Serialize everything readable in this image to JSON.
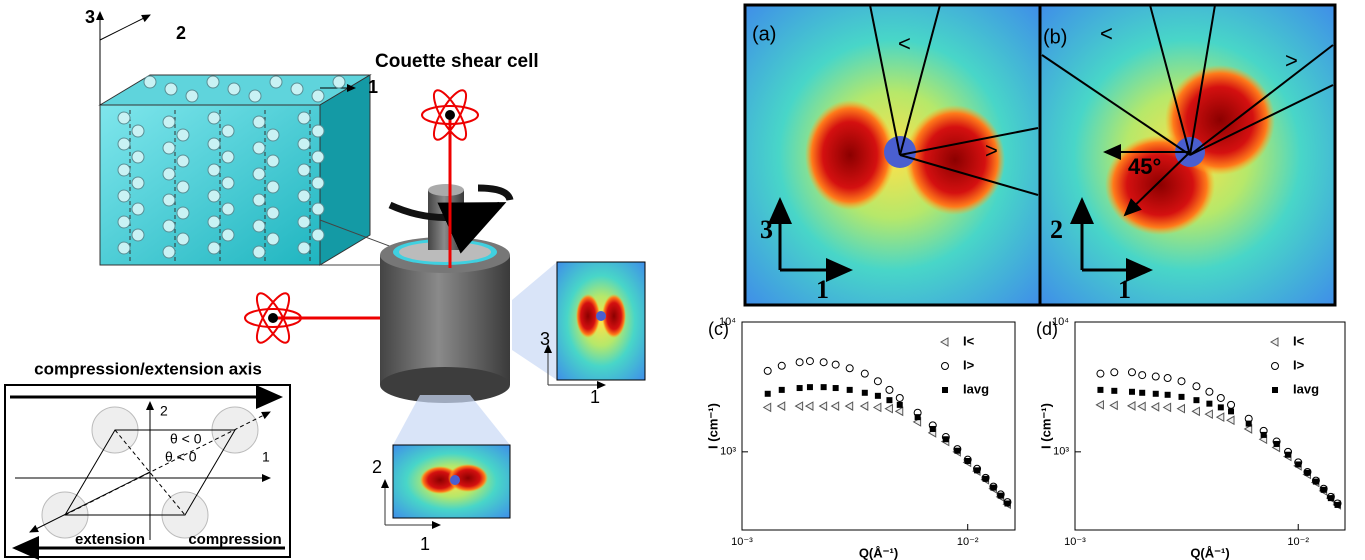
{
  "figure": {
    "cube": {
      "axis_labels": [
        "3",
        "2",
        "1"
      ]
    },
    "couette": {
      "title": "Couette shear cell"
    },
    "detector_side": {
      "axis_labels": [
        "3",
        "1"
      ]
    },
    "detector_bottom": {
      "axis_labels": [
        "2",
        "1"
      ]
    },
    "inset": {
      "title": "compression/extension axis",
      "axis_labels": [
        "2",
        "1"
      ],
      "angles": [
        "θ < 0",
        "θ < 0"
      ],
      "extension": "extension",
      "compression": "compression"
    },
    "panel_a": {
      "label": "(a)",
      "sectors": [
        "<",
        ">"
      ],
      "axis_labels": [
        "3",
        "1"
      ]
    },
    "panel_b": {
      "label": "(b)",
      "sectors": [
        "<",
        ">"
      ],
      "angle": "45°",
      "axis_labels": [
        "2",
        "1"
      ]
    }
  },
  "chart_data": [
    {
      "type": "scatter",
      "panel": "(c)",
      "x_label": "Q(Å⁻¹)",
      "y_label": "I (cm⁻¹)",
      "xscale": "log",
      "yscale": "log",
      "legend": "upper right",
      "xlim": [
        0.001,
        0.0162
      ],
      "ylim": [
        250,
        10000
      ],
      "xticks": [
        {
          "value": 0.001,
          "label": "10⁻³"
        },
        {
          "value": 0.01,
          "label": "10⁻²"
        }
      ],
      "yticks": [
        {
          "value": 1000,
          "label": "10³"
        },
        {
          "value": 10000,
          "label": "10⁴"
        }
      ],
      "x": [
        0.0013,
        0.0015,
        0.0018,
        0.002,
        0.0023,
        0.0026,
        0.003,
        0.0035,
        0.004,
        0.0045,
        0.005,
        0.006,
        0.007,
        0.008,
        0.009,
        0.01,
        0.011,
        0.012,
        0.013,
        0.014,
        0.015
      ],
      "series": [
        {
          "name": "I<",
          "marker": "triangle",
          "color": "#555555",
          "values": [
            2200,
            2250,
            2250,
            2250,
            2250,
            2250,
            2250,
            2250,
            2200,
            2150,
            2050,
            1700,
            1400,
            1200,
            1000,
            830,
            710,
            610,
            520,
            450,
            395
          ]
        },
        {
          "name": "I>",
          "marker": "circle",
          "color": "#000000",
          "values": [
            4200,
            4600,
            4900,
            5000,
            4900,
            4700,
            4400,
            4000,
            3500,
            3000,
            2600,
            2000,
            1600,
            1300,
            1050,
            870,
            740,
            630,
            540,
            470,
            410
          ]
        },
        {
          "name": "Iavg",
          "marker": "square",
          "color": "#000000",
          "values": [
            2800,
            3000,
            3100,
            3150,
            3150,
            3100,
            3000,
            2850,
            2700,
            2500,
            2300,
            1850,
            1500,
            1250,
            1020,
            850,
            720,
            620,
            530,
            460,
            400
          ]
        }
      ]
    },
    {
      "type": "scatter",
      "panel": "(d)",
      "x_label": "Q(Å⁻¹)",
      "y_label": "I (cm⁻¹)",
      "xscale": "log",
      "yscale": "log",
      "legend": "upper right",
      "xlim": [
        0.001,
        0.0162
      ],
      "ylim": [
        250,
        10000
      ],
      "xticks": [
        {
          "value": 0.001,
          "label": "10⁻³"
        },
        {
          "value": 0.01,
          "label": "10⁻²"
        }
      ],
      "yticks": [
        {
          "value": 1000,
          "label": "10³"
        },
        {
          "value": 10000,
          "label": "10⁴"
        }
      ],
      "x": [
        0.0013,
        0.0015,
        0.0018,
        0.002,
        0.0023,
        0.0026,
        0.003,
        0.0035,
        0.004,
        0.0045,
        0.005,
        0.006,
        0.007,
        0.008,
        0.009,
        0.01,
        0.011,
        0.012,
        0.013,
        0.014,
        0.015
      ],
      "series": [
        {
          "name": "I<",
          "marker": "triangle",
          "color": "#555555",
          "values": [
            2300,
            2280,
            2260,
            2240,
            2220,
            2200,
            2150,
            2050,
            1950,
            1850,
            1750,
            1500,
            1250,
            1080,
            920,
            780,
            670,
            580,
            500,
            440,
            390
          ]
        },
        {
          "name": "I>",
          "marker": "circle",
          "color": "#000000",
          "values": [
            4000,
            4100,
            4100,
            3900,
            3800,
            3700,
            3500,
            3200,
            2900,
            2600,
            2300,
            1800,
            1450,
            1200,
            1000,
            830,
            700,
            600,
            520,
            450,
            400
          ]
        },
        {
          "name": "Iavg",
          "marker": "square",
          "color": "#000000",
          "values": [
            3000,
            2950,
            2900,
            2850,
            2800,
            2750,
            2650,
            2500,
            2350,
            2200,
            2050,
            1650,
            1350,
            1150,
            950,
            800,
            690,
            590,
            510,
            440,
            390
          ]
        }
      ]
    }
  ]
}
